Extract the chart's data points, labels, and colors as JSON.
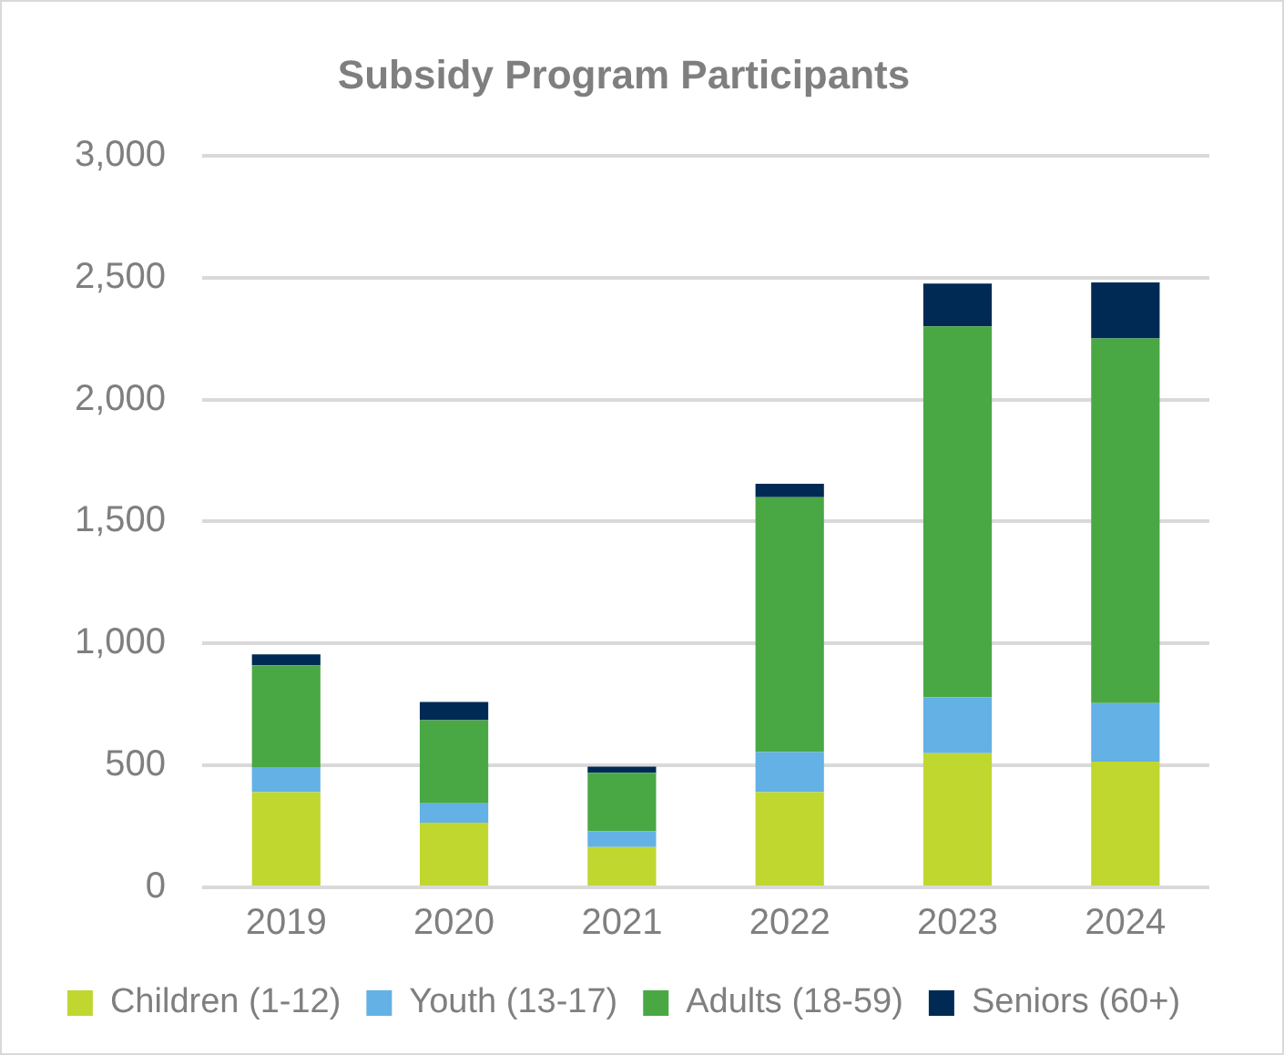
{
  "chart_data": {
    "type": "bar",
    "title": "Subsidy Program Participants",
    "stacked": true,
    "categories": [
      "2019",
      "2020",
      "2021",
      "2022",
      "2023",
      "2024"
    ],
    "series": [
      {
        "name": "Children (1-12)",
        "color": "#c0d72f",
        "values": [
          390,
          265,
          165,
          390,
          550,
          515
        ]
      },
      {
        "name": "Youth (13-17)",
        "color": "#63b1e5",
        "values": [
          100,
          80,
          65,
          165,
          230,
          240
        ]
      },
      {
        "name": "Adults (18-59)",
        "color": "#4aa844",
        "values": [
          420,
          340,
          240,
          1045,
          1520,
          1495
        ]
      },
      {
        "name": "Seniors (60+)",
        "color": "#002a54",
        "values": [
          45,
          75,
          25,
          55,
          175,
          230
        ]
      }
    ],
    "ylim": [
      0,
      3000
    ],
    "yticks": [
      0,
      500,
      {
        "value": 1000,
        "label": "1,000"
      },
      {
        "value": 1500,
        "label": "1,500"
      },
      {
        "value": 2000,
        "label": "2,000"
      },
      {
        "value": 2500,
        "label": "2,500"
      },
      {
        "value": 3000,
        "label": "3,000"
      }
    ],
    "grid": "y",
    "legend": "bottom"
  }
}
